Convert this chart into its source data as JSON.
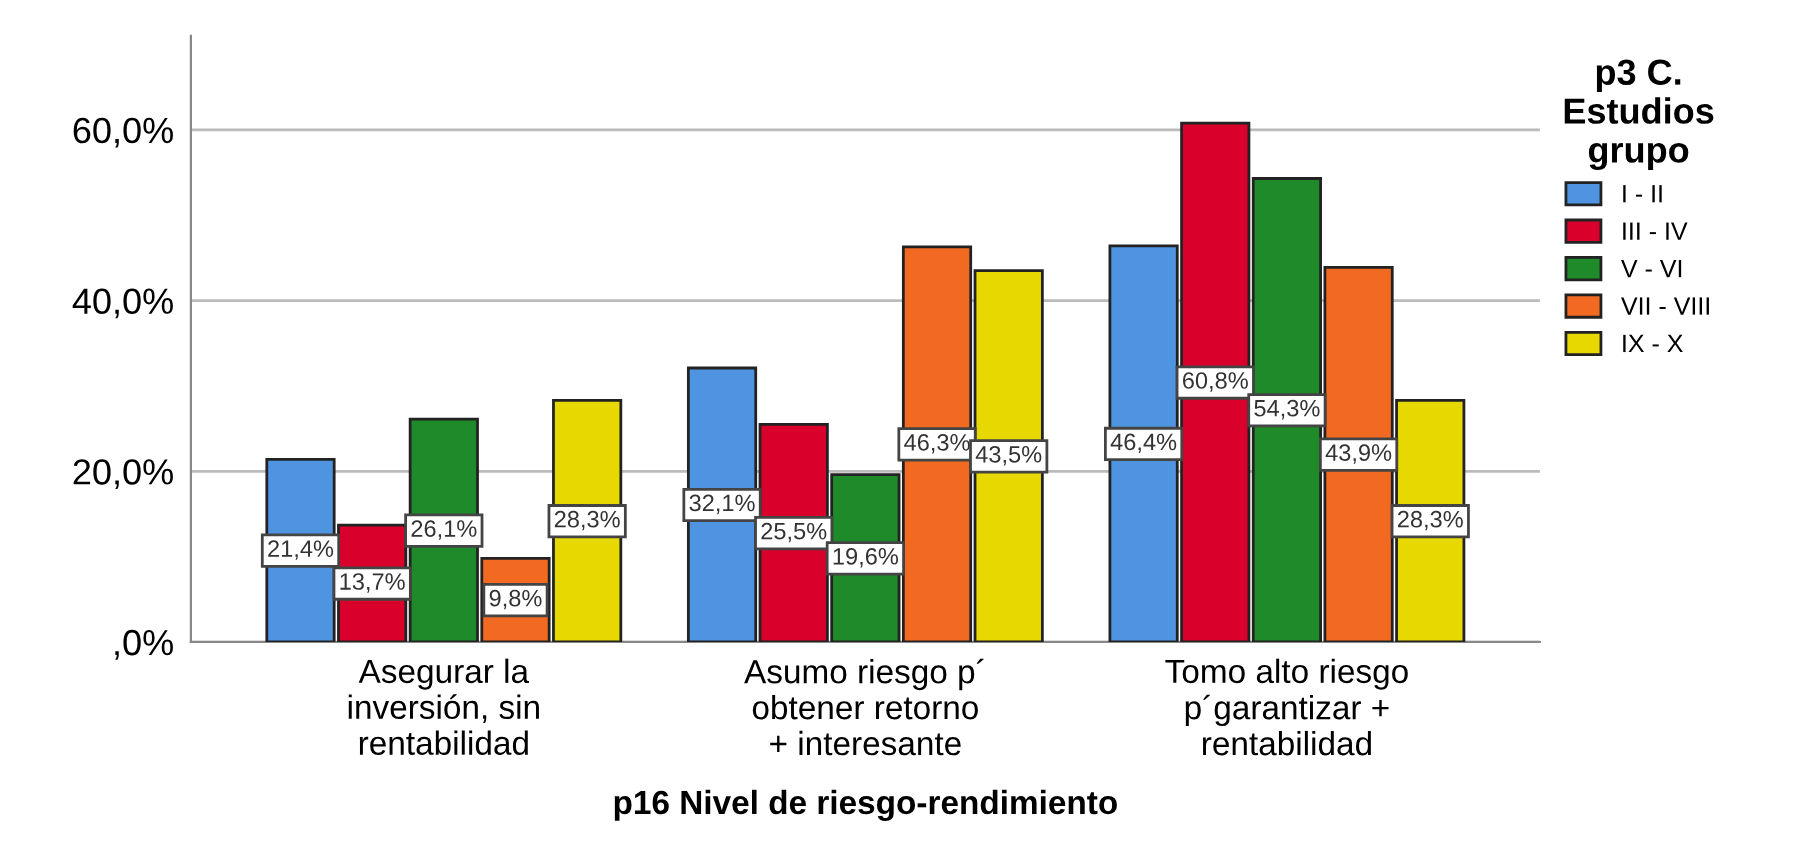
{
  "chart_data": {
    "type": "bar",
    "xlabel": "p16 Nivel de riesgo-rendimiento",
    "legend_title": "p3 C.\nEstudios\ngrupo",
    "categories": [
      "Asegurar la\ninversión, sin\nrentabilidad",
      "Asumo riesgo p´\nobtener retorno\n+ interesante",
      "Tomo alto riesgo\np´garantizar +\nrentabilidad"
    ],
    "series": [
      {
        "name": "I - II",
        "color": "#4f94e0",
        "values": [
          21.4,
          32.1,
          46.4
        ],
        "value_labels": [
          "21,4%",
          "32,1%",
          "46,4%"
        ]
      },
      {
        "name": "III - IV",
        "color": "#d9002b",
        "values": [
          13.7,
          25.5,
          60.8
        ],
        "value_labels": [
          "13,7%",
          "25,5%",
          "60,8%"
        ]
      },
      {
        "name": "V - VI",
        "color": "#1f8a2a",
        "values": [
          26.1,
          19.6,
          54.3
        ],
        "value_labels": [
          "26,1%",
          "19,6%",
          "54,3%"
        ]
      },
      {
        "name": "VII - VIII",
        "color": "#f26a21",
        "values": [
          9.8,
          46.3,
          43.9
        ],
        "value_labels": [
          "9,8%",
          "46,3%",
          "43,9%"
        ]
      },
      {
        "name": "IX - X",
        "color": "#e6d800",
        "values": [
          28.3,
          43.5,
          28.3
        ],
        "value_labels": [
          "28,3%",
          "43,5%",
          "28,3%"
        ]
      }
    ],
    "ylim": [
      0,
      71
    ],
    "yticks": [
      {
        "value": 0,
        "label": ",0%"
      },
      {
        "value": 20,
        "label": "20,0%"
      },
      {
        "value": 40,
        "label": "40,0%"
      },
      {
        "value": 60,
        "label": "60,0%"
      }
    ],
    "grid": "y",
    "legend": "top right"
  }
}
